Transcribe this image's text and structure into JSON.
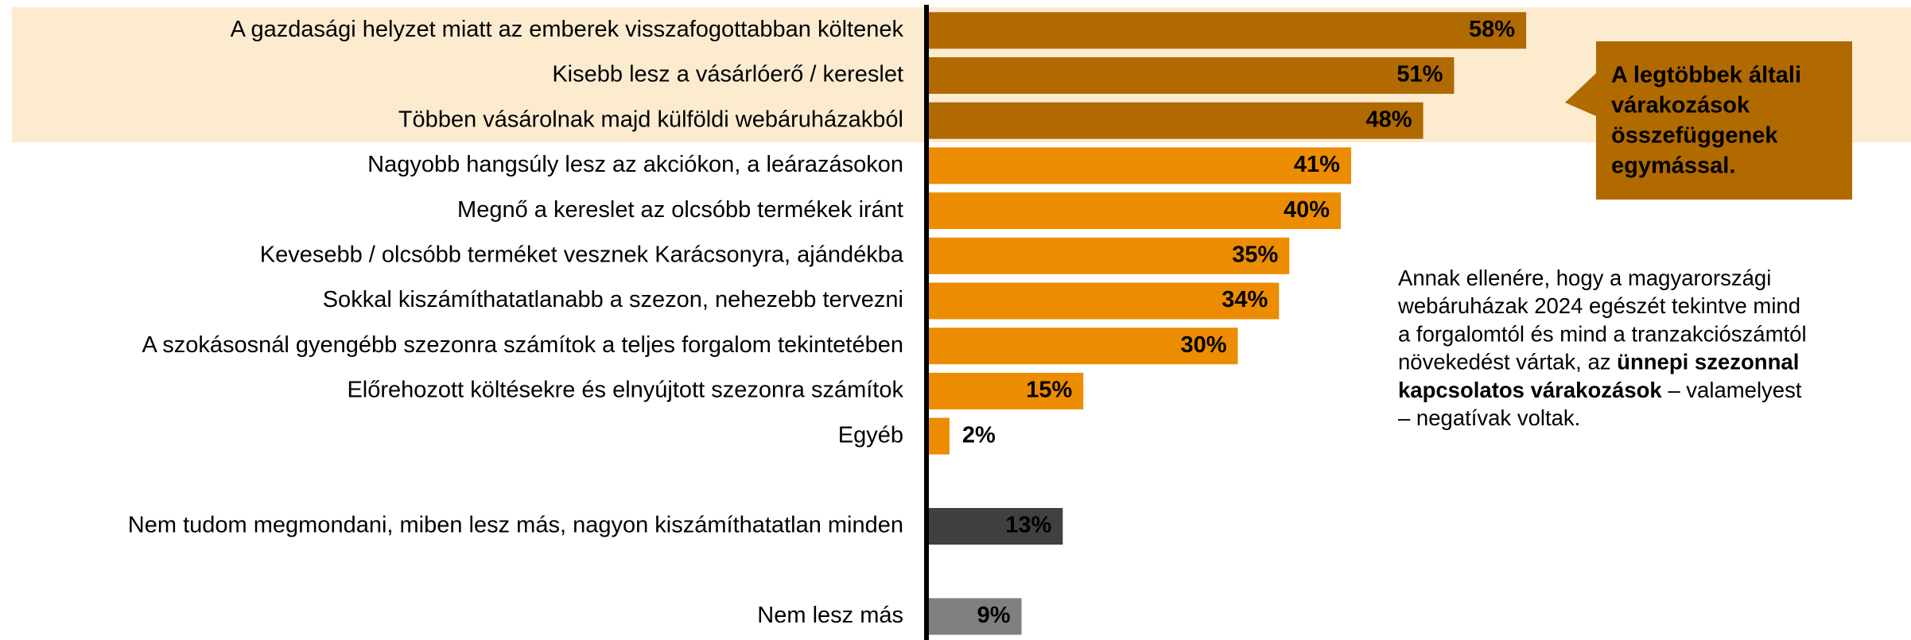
{
  "chart_data": {
    "type": "bar",
    "orientation": "horizontal",
    "categories": [
      "A gazdasági helyzet miatt az emberek visszafogottabban költenek",
      "Kisebb lesz a vásárlóerő / kereslet",
      "Többen vásárolnak majd külföldi webáruházakból",
      "Nagyobb hangsúly lesz az akciókon, a leárazásokon",
      "Megnő a kereslet az olcsóbb termékek iránt",
      "Kevesebb / olcsóbb terméket vesznek Karácsonyra, ajándékba",
      "Sokkal kiszámíthatatlanabb a szezon, nehezebb tervezni",
      "A szokásosnál gyengébb szezonra számítok a teljes forgalom tekintetében",
      "Előrehozott költésekre és elnyújtott szezonra számítok",
      "Egyéb",
      "Nem tudom megmondani, miben lesz más, nagyon kiszámíthatatlan minden",
      "Nem lesz más"
    ],
    "values": [
      58,
      51,
      48,
      41,
      40,
      35,
      34,
      30,
      15,
      2,
      13,
      9
    ],
    "value_labels": [
      "58%",
      "51%",
      "48%",
      "41%",
      "40%",
      "35%",
      "34%",
      "30%",
      "15%",
      "2%",
      "13%",
      "9%"
    ],
    "colors": [
      "#b06a00",
      "#b06a00",
      "#b06a00",
      "#ec8c00",
      "#ec8c00",
      "#ec8c00",
      "#ec8c00",
      "#ec8c00",
      "#ec8c00",
      "#ec8c00",
      "#404040",
      "#7f7f7f"
    ],
    "callout": [
      "A legtöbbek általi",
      "várakozások",
      "összefüggenek",
      "egymással."
    ],
    "note": [
      [
        {
          "text": "Annak ellenére, hogy a magyarországi",
          "bold": false
        }
      ],
      [
        {
          "text": "webáruházak 2024 egészét tekintve mind",
          "bold": false
        }
      ],
      [
        {
          "text": "a forgalomtól és mind a tranzakciószámtól",
          "bold": false
        }
      ],
      [
        {
          "text": "növekedést vártak, az ",
          "bold": false
        },
        {
          "text": "ünnepi szezonnal",
          "bold": true
        }
      ],
      [
        {
          "text": "kapcsolatos várakozások",
          "bold": true
        },
        {
          "text": " – valamelyest",
          "bold": false
        }
      ],
      [
        {
          "text": "– negatívak voltak.",
          "bold": false
        }
      ]
    ]
  }
}
